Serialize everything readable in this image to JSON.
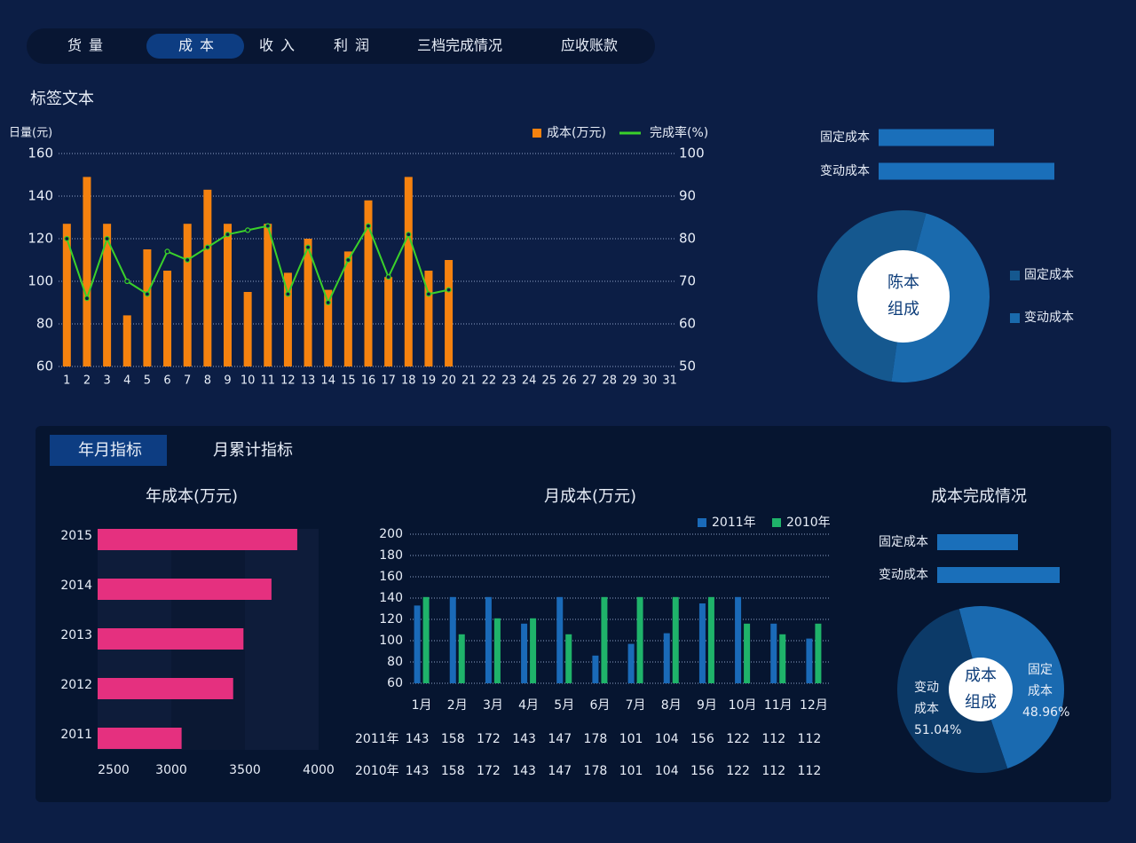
{
  "nav_tabs": [
    "货量",
    "成本",
    "收入",
    "利润",
    "三档完成情况",
    "应收账款"
  ],
  "section_title": "标签文本",
  "panel_tabs": [
    "年月指标",
    "月累计指标"
  ],
  "chart_data": [
    {
      "type": "bar",
      "y_label": "日量(元)",
      "categories": [
        "1",
        "2",
        "3",
        "4",
        "5",
        "6",
        "7",
        "8",
        "9",
        "10",
        "11",
        "12",
        "13",
        "14",
        "15",
        "16",
        "17",
        "18",
        "19",
        "20",
        "21",
        "22",
        "23",
        "24",
        "25",
        "26",
        "27",
        "28",
        "29",
        "30",
        "31"
      ],
      "series": [
        {
          "name": "成本(万元)",
          "color": "#f5820f",
          "values": [
            127,
            149,
            127,
            84,
            115,
            105,
            127,
            143,
            127,
            95,
            127,
            104,
            120,
            96,
            114,
            138,
            102,
            149,
            105,
            110,
            null,
            null,
            null,
            null,
            null,
            null,
            null,
            null,
            null,
            null,
            null
          ]
        },
        {
          "name": "完成率(%)",
          "type": "line",
          "axis": "y2",
          "color": "#3ad12a",
          "values": [
            80,
            66,
            80,
            70,
            67,
            77,
            75,
            78,
            81,
            82,
            83,
            67,
            78,
            65,
            75,
            83,
            71,
            81,
            67,
            68,
            null,
            null,
            null,
            null,
            null,
            null,
            null,
            null,
            null,
            null,
            null
          ]
        }
      ],
      "ylim": [
        60,
        160
      ],
      "yticks": [
        60,
        80,
        100,
        120,
        140,
        160
      ],
      "y2lim": [
        50,
        100
      ],
      "y2ticks": [
        50,
        60,
        70,
        80,
        90,
        100
      ],
      "grid": true,
      "legend": "top-right"
    },
    {
      "type": "hbar",
      "categories": [
        "固定成本",
        "变动成本"
      ],
      "values": [
        130,
        198
      ],
      "color": "#1a6fba"
    },
    {
      "type": "pie",
      "center_label": "陈本组成",
      "categories": [
        "固定成本",
        "变动成本"
      ],
      "values": [
        52,
        48
      ],
      "colors": [
        "#15588f",
        "#1a6aad"
      ],
      "legend": "right"
    },
    {
      "type": "hbar",
      "title": "年成本(万元)",
      "categories": [
        "2015",
        "2014",
        "2013",
        "2012",
        "2011"
      ],
      "values": [
        3855,
        3680,
        3490,
        3420,
        3070
      ],
      "color": "#e5307f",
      "xlim": [
        2500,
        4000
      ],
      "xticks": [
        2500,
        3000,
        3500,
        4000
      ]
    },
    {
      "type": "bar",
      "title": "月成本(万元)",
      "categories": [
        "1月",
        "2月",
        "3月",
        "4月",
        "5月",
        "6月",
        "7月",
        "8月",
        "9月",
        "10月",
        "11月",
        "12月"
      ],
      "series": [
        {
          "name": "2011年",
          "color": "#1a6ab8",
          "values": [
            133,
            141,
            141,
            116,
            141,
            86,
            97,
            107,
            135,
            141,
            116,
            102
          ]
        },
        {
          "name": "2010年",
          "color": "#1fb36a",
          "values": [
            141,
            106,
            121,
            121,
            106,
            141,
            141,
            141,
            141,
            116,
            106,
            116
          ]
        }
      ],
      "ylim": [
        60,
        200
      ],
      "yticks": [
        60,
        80,
        100,
        120,
        140,
        160,
        180,
        200
      ],
      "grid": true,
      "legend": "top-right"
    },
    {
      "type": "hbar",
      "title": "成本完成情况",
      "categories": [
        "固定成本",
        "变动成本"
      ],
      "values": [
        91,
        138
      ],
      "color": "#1a6fba"
    },
    {
      "type": "pie",
      "center_label": "成本组成",
      "categories": [
        "固定成本",
        "变动成本"
      ],
      "values": [
        48.96,
        51.04
      ],
      "value_labels": [
        "48.96%",
        "51.04%"
      ],
      "colors": [
        "#1a6ab0",
        "#0c3a68"
      ]
    }
  ],
  "monthly_table": {
    "rows": [
      {
        "label": "2011年",
        "values": [
          143,
          158,
          172,
          143,
          147,
          178,
          101,
          104,
          156,
          122,
          112,
          112
        ]
      },
      {
        "label": "2010年",
        "values": [
          143,
          158,
          172,
          143,
          147,
          178,
          101,
          104,
          156,
          122,
          112,
          112
        ]
      }
    ]
  }
}
